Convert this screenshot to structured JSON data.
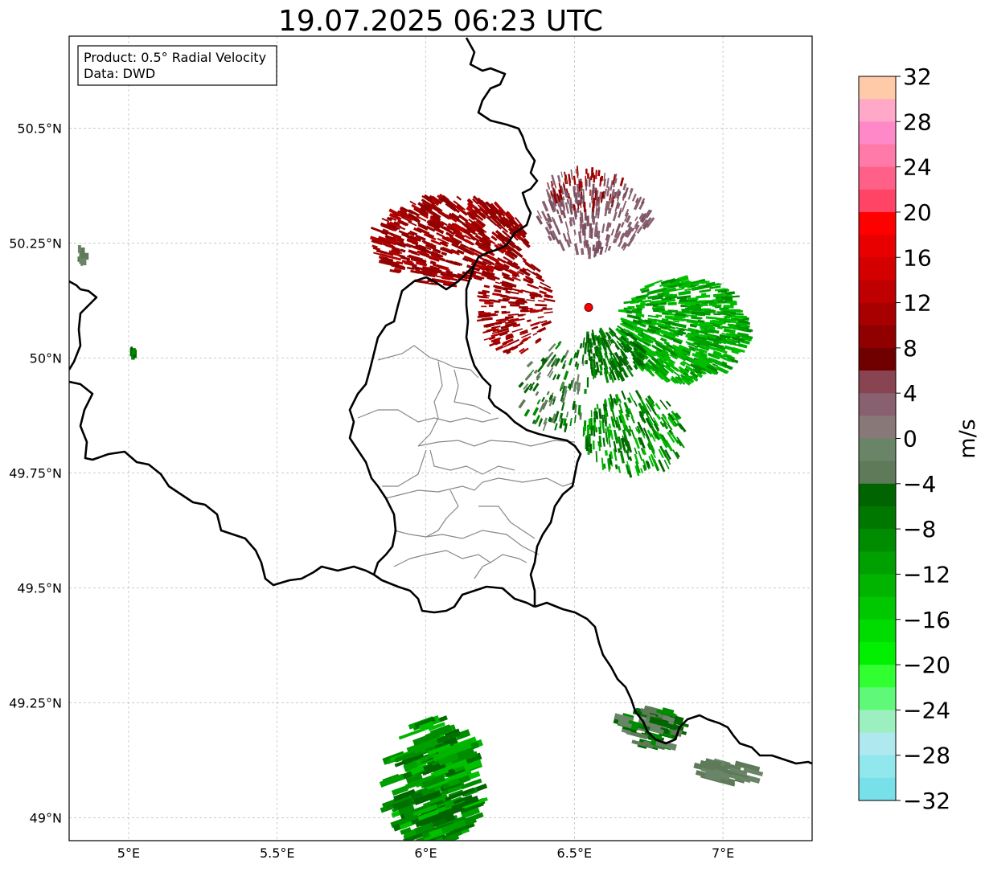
{
  "title": "19.07.2025 06:23 UTC",
  "info_box": {
    "product": "Product: 0.5° Radial Velocity",
    "data": "Data: DWD"
  },
  "map": {
    "lon_ticks": [
      {
        "value": 5.0,
        "label": "5°E"
      },
      {
        "value": 5.5,
        "label": "5.5°E"
      },
      {
        "value": 6.0,
        "label": "6°E"
      },
      {
        "value": 6.5,
        "label": "6.5°E"
      },
      {
        "value": 7.0,
        "label": "7°E"
      }
    ],
    "lat_ticks": [
      {
        "value": 50.5,
        "label": "50.5°N"
      },
      {
        "value": 50.25,
        "label": "50.25°N"
      },
      {
        "value": 50.0,
        "label": "50°N"
      },
      {
        "value": 49.75,
        "label": "49.75°N"
      },
      {
        "value": 49.5,
        "label": "49.5°N"
      },
      {
        "value": 49.25,
        "label": "49.25°N"
      },
      {
        "value": 49.0,
        "label": "49°N"
      }
    ],
    "extent": {
      "lon_min": 4.8,
      "lon_max": 7.3,
      "lat_min": 48.95,
      "lat_max": 50.7
    },
    "gridlines": true,
    "radar_site": {
      "lon": 6.548,
      "lat": 50.11,
      "color": "#ff0000"
    }
  },
  "colorbar": {
    "label": "m/s",
    "min": -32,
    "max": 32,
    "tick_labels": [
      "32",
      "28",
      "24",
      "20",
      "16",
      "12",
      "8",
      "4",
      "0",
      "−4",
      "−8",
      "−12",
      "−16",
      "−20",
      "−24",
      "−28",
      "−32"
    ],
    "colors_top_to_bottom": [
      "#ffcaa8",
      "#ffa8c8",
      "#ff88c8",
      "#ff7aa8",
      "#ff6088",
      "#ff4466",
      "#ff0000",
      "#e80000",
      "#d40000",
      "#c00000",
      "#a80000",
      "#900000",
      "#700000",
      "#884450",
      "#886070",
      "#887878",
      "#6a8468",
      "#5e7a58",
      "#006400",
      "#007800",
      "#008c00",
      "#00a000",
      "#00b400",
      "#00c800",
      "#00dc00",
      "#00f000",
      "#30ff30",
      "#60f878",
      "#9cf0c0",
      "#b0e8f0",
      "#90e8ec",
      "#78e0e8"
    ]
  },
  "velocity_colors": {
    "outbound_dark": "#990000",
    "outbound_mid": "#b40000",
    "outbound_faint": "#886070",
    "inbound_strong": "#00b400",
    "inbound_mid": "#008c00",
    "inbound_dark": "#006400",
    "inbound_faint": "#5e7a58"
  }
}
